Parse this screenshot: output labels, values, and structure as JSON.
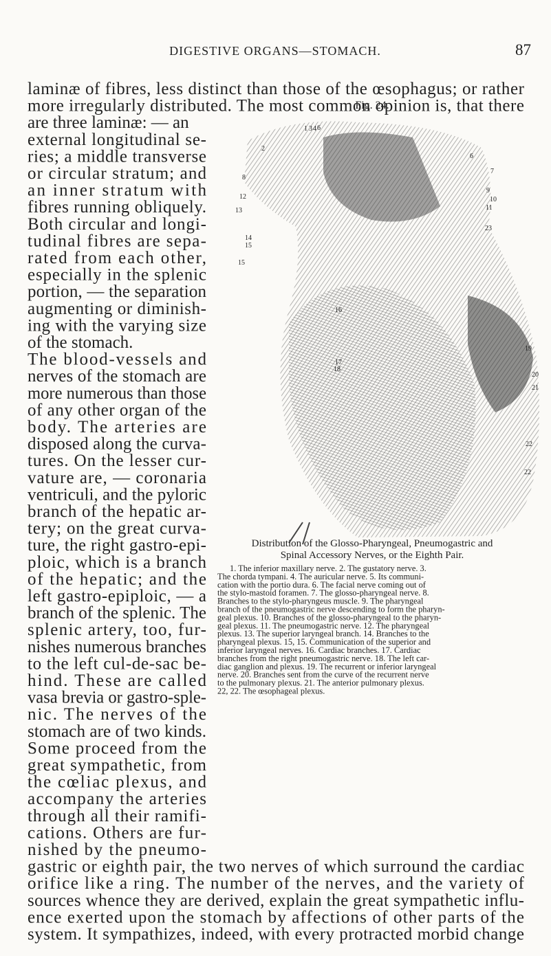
{
  "header": {
    "title": "DIGESTIVE ORGANS—STOMACH.",
    "page_number": "87"
  },
  "body": {
    "lines": [
      "laminæ of fibres, less distinct than those of the œsophagus; or rather",
      "more irregularly distributed. The most common opinion is, that there",
      "are three laminæ: — an",
      "external longitudinal se-",
      "ries; a middle transverse",
      "or circular stratum; and",
      "an inner stratum with",
      "fibres running obliquely.",
      "Both circular and longi-",
      "tudinal fibres are sepa-",
      "rated from each other,",
      "especially in the splenic",
      "portion, — the separation",
      "augmenting or diminish-",
      "ing with the varying size",
      "of the stomach.",
      "The blood-vessels and",
      "nerves of the stomach are",
      "more numerous than those",
      "of any other organ of the",
      "body. The arteries are",
      "disposed along the curva-",
      "tures. On the lesser cur-",
      "vature are, — coronaria",
      "ventriculi, and the pyloric",
      "branch of the hepatic ar-",
      "tery; on the great curva-",
      "ture, the right gastro-epi-",
      "ploic, which is a branch",
      "of the hepatic; and the",
      "left gastro-epiploic, — a",
      "branch of the splenic. The",
      "splenic artery, too, fur-",
      "nishes numerous branches",
      "to the left cul-de-sac be-",
      "hind. These are called",
      "vasa brevia or gastro-sple-",
      "nic. The nerves of the",
      "stomach are of two kinds.",
      "Some proceed from the",
      "great sympathetic, from",
      "the cœliac plexus, and",
      "accompany the arteries",
      "through all their ramifi-",
      "cations. Others are fur-",
      "nished by the pneumo-",
      "gastric or eighth pair, the two nerves of which surround the cardiac",
      "orifice like a ring. The number of the nerves, and the variety of",
      "sources whence they are derived, explain the great sympathetic influ-",
      "ence exerted upon the stomach by affections of other parts of the",
      "system. It sympathizes, indeed, with every protracted morbid change"
    ]
  },
  "figure": {
    "label": "Fig. 24.",
    "labels": [
      "1",
      "3",
      "4",
      "6",
      "2",
      "6",
      "7",
      "8",
      "12",
      "9",
      "10",
      "11",
      "13",
      "23",
      "14",
      "15",
      "15",
      "16",
      "19",
      "17",
      "18",
      "20",
      "21",
      "22",
      "22"
    ],
    "caption": [
      "Distribution of the Glosso-Pharyngeal, Pneumogastric and",
      "Spinal Accessory Nerves, or the Eighth Pair."
    ],
    "legend": [
      "1. The inferior maxillary nerve. 2. The gustatory nerve. 3.",
      "The chorda tympani. 4. The auricular nerve. 5. Its communi-",
      "cation with the portio dura. 6. The facial nerve coming out of",
      "the stylo-mastoid foramen. 7. The glosso-pharyngeal nerve. 8.",
      "Branches to the stylo-pharyngeus muscle. 9. The pharyngeal",
      "branch of the pneumogastric nerve descending to form the pharyn-",
      "geal plexus. 10. Branches of the glosso-pharyngeal to the pharyn-",
      "geal plexus. 11. The pneumogastric nerve. 12. The pharyngeal",
      "plexus. 13. The superior laryngeal branch. 14. Branches to the",
      "pharyngeal plexus. 15, 15. Communication of the superior and",
      "inferior laryngeal nerves. 16. Cardiac branches. 17. Cardiac",
      "branches from the right pneumogastric nerve. 18. The left car-",
      "diac ganglion and plexus. 19. The recurrent or inferior laryngeal",
      "nerve. 20. Branches sent from the curve of the recurrent nerve",
      "to the pulmonary plexus. 21. The anterior pulmonary plexus.",
      "22, 22. The œsophageal plexus."
    ]
  }
}
